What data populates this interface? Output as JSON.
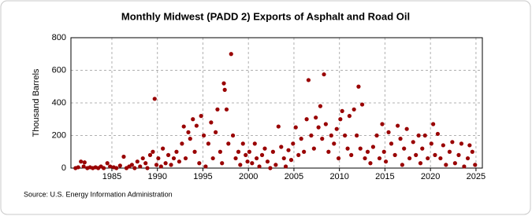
{
  "chart_data": {
    "type": "scatter",
    "title": "Monthly Midwest (PADD 2) Exports of Asphalt and Road Oil",
    "y_label": "Thousand Barrels",
    "source": "Source: U.S. Energy Information Administration",
    "color": "#990000",
    "grid": true,
    "xlim": [
      1980.5,
      2025.7
    ],
    "ylim": [
      0,
      800
    ],
    "xticks": [
      1985,
      1990,
      1995,
      2000,
      2005,
      2010,
      2015,
      2020,
      2025
    ],
    "yticks": [
      0,
      200,
      400,
      600,
      800
    ],
    "x": [
      1981.0,
      1981.3,
      1981.6,
      1981.9,
      1982.0,
      1982.3,
      1982.6,
      1982.9,
      1983.2,
      1983.5,
      1983.8,
      1984.1,
      1984.5,
      1984.8,
      1985.2,
      1985.5,
      1985.9,
      1986.3,
      1986.6,
      1986.9,
      1987.2,
      1987.5,
      1987.8,
      1988.1,
      1988.4,
      1988.7,
      1988.9,
      1989.2,
      1989.5,
      1989.7,
      1989.9,
      1990.1,
      1990.4,
      1990.6,
      1990.9,
      1991.2,
      1991.5,
      1991.8,
      1992.1,
      1992.4,
      1992.7,
      1992.9,
      1993.1,
      1993.4,
      1993.6,
      1993.9,
      1994.1,
      1994.3,
      1994.6,
      1994.8,
      1995.1,
      1995.3,
      1995.6,
      1995.9,
      1996.1,
      1996.4,
      1996.6,
      1996.9,
      1997.1,
      1997.3,
      1997.4,
      1997.6,
      1997.8,
      1998.1,
      1998.3,
      1998.6,
      1998.9,
      1999.1,
      1999.4,
      1999.7,
      1999.9,
      2000.1,
      2000.4,
      2000.7,
      2000.9,
      2001.2,
      2001.5,
      2001.8,
      2002.1,
      2002.4,
      2002.7,
      2003.0,
      2003.3,
      2003.6,
      2003.9,
      2004.1,
      2004.4,
      2004.7,
      2004.9,
      2005.2,
      2005.5,
      2005.8,
      2006.1,
      2006.4,
      2006.6,
      2006.9,
      2007.2,
      2007.4,
      2007.7,
      2007.9,
      2008.1,
      2008.3,
      2008.5,
      2008.8,
      2009.1,
      2009.4,
      2009.7,
      2009.9,
      2010.1,
      2010.3,
      2010.6,
      2010.9,
      2011.1,
      2011.3,
      2011.6,
      2011.9,
      2012.1,
      2012.3,
      2012.5,
      2012.8,
      2013.1,
      2013.4,
      2013.7,
      2014.1,
      2014.4,
      2014.7,
      2014.9,
      2015.1,
      2015.4,
      2015.7,
      2016.1,
      2016.4,
      2016.7,
      2016.9,
      2017.1,
      2017.4,
      2017.7,
      2018.1,
      2018.4,
      2018.7,
      2018.9,
      2019.1,
      2019.4,
      2019.7,
      2020.1,
      2020.3,
      2020.5,
      2020.8,
      2021.1,
      2021.4,
      2021.7,
      2022.1,
      2022.4,
      2022.7,
      2023.1,
      2023.4,
      2023.7,
      2024.1,
      2024.3,
      2024.6,
      2024.9
    ],
    "values": [
      0,
      5,
      40,
      10,
      35,
      0,
      5,
      0,
      5,
      0,
      10,
      0,
      30,
      10,
      5,
      0,
      15,
      70,
      0,
      10,
      20,
      0,
      40,
      10,
      60,
      30,
      0,
      80,
      100,
      425,
      20,
      60,
      10,
      120,
      30,
      80,
      20,
      60,
      100,
      40,
      150,
      255,
      60,
      220,
      180,
      300,
      100,
      260,
      30,
      320,
      200,
      10,
      150,
      280,
      60,
      220,
      360,
      100,
      30,
      520,
      480,
      360,
      150,
      700,
      200,
      60,
      100,
      20,
      150,
      80,
      40,
      100,
      30,
      150,
      60,
      10,
      80,
      120,
      40,
      0,
      100,
      20,
      255,
      130,
      60,
      10,
      110,
      50,
      150,
      250,
      80,
      180,
      100,
      300,
      540,
      200,
      120,
      310,
      250,
      380,
      180,
      575,
      270,
      100,
      200,
      150,
      240,
      60,
      300,
      350,
      200,
      120,
      320,
      80,
      360,
      200,
      500,
      120,
      390,
      60,
      100,
      30,
      130,
      200,
      60,
      270,
      100,
      40,
      220,
      150,
      80,
      260,
      180,
      20,
      120,
      240,
      60,
      160,
      80,
      200,
      30,
      120,
      200,
      60,
      150,
      270,
      80,
      210,
      60,
      140,
      20,
      100,
      160,
      30,
      80,
      150,
      10,
      60,
      140,
      100,
      20
    ]
  }
}
